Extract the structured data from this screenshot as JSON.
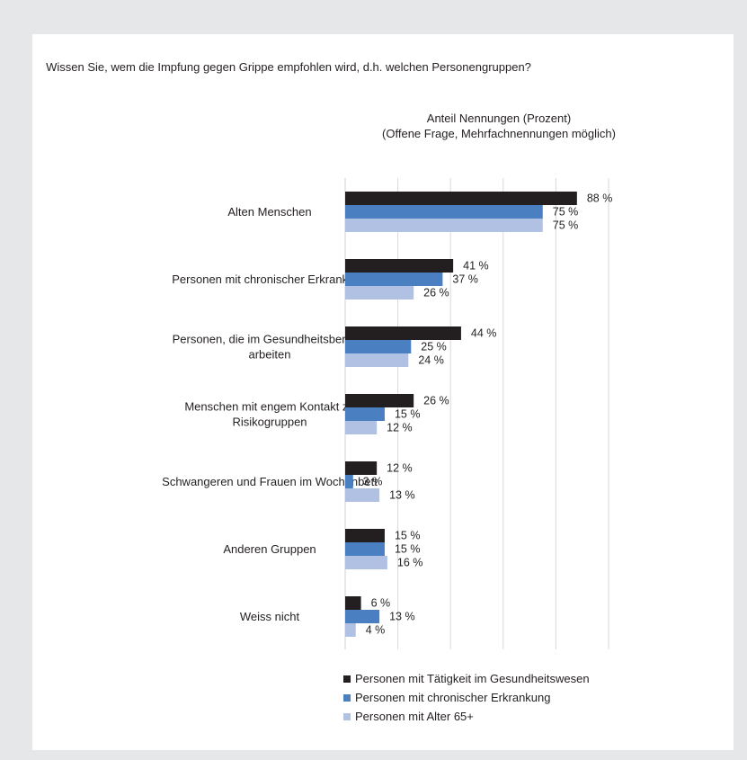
{
  "title": "Wissen Sie, wem die Impfung gegen Grippe empfohlen wird, d.h. welchen Personengruppen?",
  "subtitle_line1": "Anteil Nennungen (Prozent)",
  "subtitle_line2": "(Offene Frage, Mehrfachnennungen möglich)",
  "chart_data": {
    "type": "bar",
    "orientation": "horizontal",
    "xlim": [
      0,
      100
    ],
    "grid": true,
    "legend_position": "bottom",
    "value_suffix": " %",
    "categories": [
      [
        "Alten Menschen"
      ],
      [
        "Personen mit chronischer Erkrankung"
      ],
      [
        "Personen, die im Gesundheitsbereich",
        "arbeiten"
      ],
      [
        "Menschen mit engem Kontakt zu",
        "Risikogruppen"
      ],
      [
        "Schwangeren und Frauen im Wochenbett"
      ],
      [
        "Anderen Gruppen"
      ],
      [
        "Weiss nicht"
      ]
    ],
    "series": [
      {
        "name": "Personen mit Tätigkeit im Gesundheitswesen",
        "color": "#231f20",
        "values": [
          88,
          41,
          44,
          26,
          12,
          15,
          6
        ]
      },
      {
        "name": "Personen mit chronischer Erkrankung",
        "color": "#4a7fc1",
        "values": [
          75,
          37,
          25,
          15,
          3,
          15,
          13
        ]
      },
      {
        "name": "Personen mit Alter 65+",
        "color": "#b0c1e4",
        "values": [
          75,
          26,
          24,
          12,
          13,
          16,
          4
        ]
      }
    ]
  }
}
